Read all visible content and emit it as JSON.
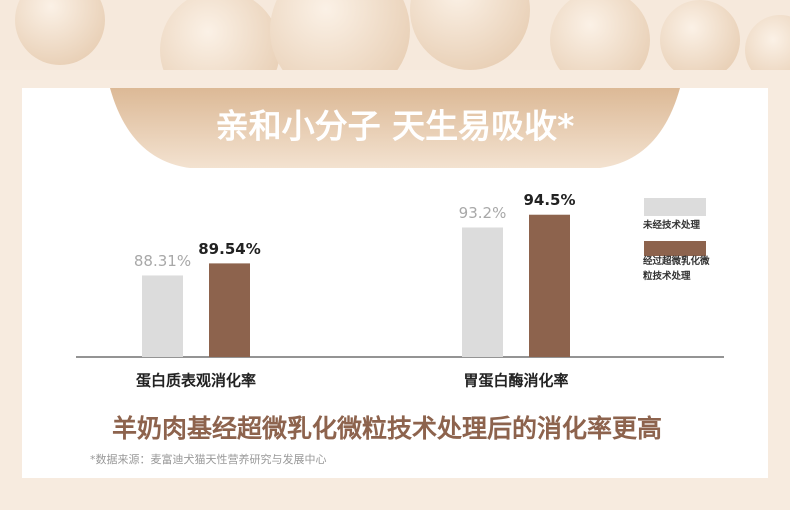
{
  "chart_data": {
    "type": "bar",
    "title": "亲和小分子 天生易吸收*",
    "subtitle": "羊奶肉基经超微乳化微粒技术处理后的消化率更高",
    "footnote": "*数据来源：麦富迪犬猫天性营养研究与发展中心",
    "categories": [
      "蛋白质表观消化率",
      "胃蛋白酶消化率"
    ],
    "series": [
      {
        "name": "未经技术处理",
        "color": "#dcdcdc",
        "values": [
          88.31,
          93.2
        ],
        "value_labels": [
          "88.31%",
          "93.2%"
        ]
      },
      {
        "name": "经过超微乳化微粒技术处理",
        "color": "#8d634d",
        "values": [
          89.54,
          94.5
        ],
        "value_labels": [
          "89.54%",
          "94.5%"
        ]
      }
    ],
    "ylim": [
      80,
      96
    ]
  }
}
